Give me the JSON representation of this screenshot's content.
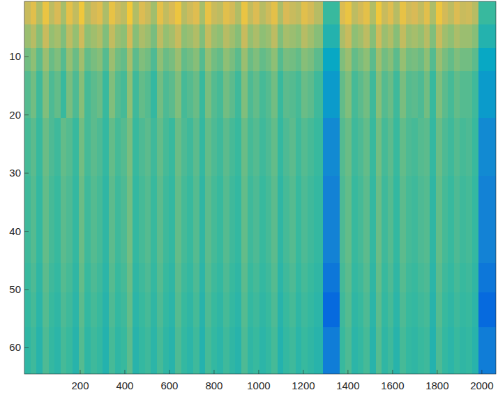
{
  "chart_data": {
    "type": "heatmap",
    "xlim": [
      -50,
      2063
    ],
    "ylim": [
      0.5,
      64.5
    ],
    "xticks": [
      200,
      400,
      600,
      800,
      1000,
      1200,
      1400,
      1600,
      1800,
      2000
    ],
    "yticks": [
      10,
      20,
      30,
      40,
      50,
      60
    ],
    "color_range": [
      0,
      1
    ],
    "x_edges": [
      -50,
      -23,
      4,
      31,
      58,
      85,
      112,
      139,
      166,
      193,
      220,
      247,
      274,
      301,
      328,
      355,
      382,
      409,
      436,
      463,
      490,
      517,
      544,
      571,
      598,
      625,
      652,
      679,
      706,
      733,
      760,
      787,
      814,
      841,
      868,
      895,
      922,
      949,
      976,
      1003,
      1030,
      1057,
      1084,
      1111,
      1138,
      1165,
      1192,
      1219,
      1246,
      1287,
      1362,
      1389,
      1416,
      1443,
      1470,
      1497,
      1524,
      1551,
      1578,
      1605,
      1632,
      1659,
      1686,
      1713,
      1740,
      1767,
      1794,
      1821,
      1848,
      1875,
      1902,
      1929,
      1956,
      1984,
      2063
    ],
    "y_edges": [
      0.5,
      4.5,
      8.5,
      12.5,
      20.5,
      30.5,
      45.5,
      50.5,
      56.5,
      64.5
    ],
    "cells": [
      [
        0.72,
        0.78,
        0.68,
        0.81,
        0.7,
        0.75,
        0.66,
        0.79,
        0.71,
        0.83,
        0.69,
        0.74,
        0.77,
        0.67,
        0.8,
        0.73,
        0.7,
        0.84,
        0.68,
        0.76,
        0.72,
        0.65,
        0.79,
        0.71,
        0.75,
        0.82,
        0.69,
        0.73,
        0.77,
        0.66,
        0.8,
        0.72,
        0.7,
        0.78,
        0.74,
        0.68,
        0.81,
        0.71,
        0.76,
        0.69,
        0.73,
        0.79,
        0.67,
        0.75,
        0.72,
        0.7,
        0.78,
        0.74,
        0.69,
        0.5,
        0.76,
        0.81,
        0.7,
        0.74,
        0.79,
        0.68,
        0.83,
        0.72,
        0.77,
        0.69,
        0.8,
        0.73,
        0.75,
        0.71,
        0.78,
        0.67,
        0.82,
        0.74,
        0.7,
        0.76,
        0.72,
        0.73,
        0.69,
        0.5
      ],
      [
        0.64,
        0.69,
        0.61,
        0.72,
        0.63,
        0.66,
        0.6,
        0.7,
        0.63,
        0.73,
        0.62,
        0.65,
        0.68,
        0.6,
        0.71,
        0.64,
        0.62,
        0.74,
        0.61,
        0.67,
        0.64,
        0.59,
        0.7,
        0.63,
        0.66,
        0.72,
        0.62,
        0.64,
        0.68,
        0.6,
        0.71,
        0.64,
        0.62,
        0.69,
        0.65,
        0.61,
        0.72,
        0.63,
        0.67,
        0.62,
        0.64,
        0.7,
        0.6,
        0.66,
        0.64,
        0.62,
        0.69,
        0.65,
        0.61,
        0.45,
        0.67,
        0.72,
        0.62,
        0.65,
        0.7,
        0.61,
        0.73,
        0.64,
        0.68,
        0.61,
        0.71,
        0.64,
        0.66,
        0.63,
        0.69,
        0.6,
        0.72,
        0.65,
        0.62,
        0.67,
        0.64,
        0.64,
        0.61,
        0.45
      ],
      [
        0.58,
        0.62,
        0.55,
        0.64,
        0.57,
        0.6,
        0.54,
        0.63,
        0.57,
        0.65,
        0.56,
        0.59,
        0.61,
        0.54,
        0.64,
        0.58,
        0.56,
        0.66,
        0.55,
        0.6,
        0.58,
        0.53,
        0.62,
        0.57,
        0.59,
        0.64,
        0.56,
        0.58,
        0.61,
        0.54,
        0.63,
        0.58,
        0.56,
        0.62,
        0.59,
        0.55,
        0.64,
        0.57,
        0.6,
        0.56,
        0.58,
        0.62,
        0.54,
        0.59,
        0.58,
        0.56,
        0.61,
        0.59,
        0.55,
        0.38,
        0.6,
        0.64,
        0.56,
        0.59,
        0.62,
        0.55,
        0.65,
        0.58,
        0.61,
        0.55,
        0.63,
        0.58,
        0.59,
        0.57,
        0.62,
        0.54,
        0.64,
        0.59,
        0.56,
        0.6,
        0.58,
        0.58,
        0.55,
        0.38
      ],
      [
        0.54,
        0.58,
        0.51,
        0.6,
        0.53,
        0.56,
        0.5,
        0.59,
        0.53,
        0.61,
        0.52,
        0.55,
        0.57,
        0.5,
        0.6,
        0.54,
        0.52,
        0.62,
        0.51,
        0.56,
        0.54,
        0.49,
        0.58,
        0.53,
        0.55,
        0.6,
        0.52,
        0.54,
        0.57,
        0.5,
        0.59,
        0.54,
        0.52,
        0.58,
        0.55,
        0.51,
        0.6,
        0.53,
        0.56,
        0.52,
        0.54,
        0.58,
        0.5,
        0.55,
        0.54,
        0.52,
        0.57,
        0.55,
        0.51,
        0.33,
        0.56,
        0.6,
        0.52,
        0.55,
        0.58,
        0.51,
        0.61,
        0.54,
        0.57,
        0.51,
        0.59,
        0.54,
        0.55,
        0.53,
        0.58,
        0.5,
        0.6,
        0.55,
        0.52,
        0.56,
        0.54,
        0.54,
        0.51,
        0.33
      ],
      [
        0.52,
        0.55,
        0.5,
        0.57,
        0.53,
        0.51,
        0.56,
        0.54,
        0.5,
        0.58,
        0.52,
        0.55,
        0.53,
        0.49,
        0.56,
        0.52,
        0.54,
        0.59,
        0.5,
        0.53,
        0.55,
        0.51,
        0.56,
        0.52,
        0.5,
        0.57,
        0.53,
        0.51,
        0.55,
        0.49,
        0.56,
        0.53,
        0.51,
        0.55,
        0.52,
        0.5,
        0.57,
        0.52,
        0.54,
        0.51,
        0.53,
        0.56,
        0.49,
        0.53,
        0.55,
        0.51,
        0.54,
        0.52,
        0.5,
        0.27,
        0.54,
        0.57,
        0.51,
        0.53,
        0.56,
        0.5,
        0.58,
        0.52,
        0.55,
        0.5,
        0.56,
        0.53,
        0.52,
        0.54,
        0.55,
        0.49,
        0.57,
        0.53,
        0.51,
        0.54,
        0.52,
        0.53,
        0.5,
        0.27
      ],
      [
        0.51,
        0.54,
        0.49,
        0.56,
        0.52,
        0.5,
        0.55,
        0.53,
        0.49,
        0.57,
        0.51,
        0.54,
        0.52,
        0.48,
        0.55,
        0.51,
        0.53,
        0.58,
        0.49,
        0.52,
        0.54,
        0.5,
        0.55,
        0.51,
        0.49,
        0.56,
        0.52,
        0.5,
        0.54,
        0.48,
        0.55,
        0.52,
        0.5,
        0.54,
        0.51,
        0.49,
        0.56,
        0.51,
        0.53,
        0.5,
        0.52,
        0.55,
        0.48,
        0.52,
        0.54,
        0.5,
        0.53,
        0.51,
        0.49,
        0.24,
        0.53,
        0.56,
        0.5,
        0.52,
        0.55,
        0.49,
        0.57,
        0.51,
        0.54,
        0.49,
        0.55,
        0.52,
        0.51,
        0.53,
        0.54,
        0.48,
        0.56,
        0.52,
        0.5,
        0.53,
        0.51,
        0.52,
        0.49,
        0.24
      ],
      [
        0.5,
        0.53,
        0.48,
        0.55,
        0.51,
        0.49,
        0.54,
        0.52,
        0.48,
        0.56,
        0.5,
        0.53,
        0.51,
        0.47,
        0.54,
        0.5,
        0.52,
        0.57,
        0.48,
        0.51,
        0.53,
        0.49,
        0.54,
        0.5,
        0.48,
        0.55,
        0.51,
        0.49,
        0.53,
        0.47,
        0.54,
        0.51,
        0.49,
        0.53,
        0.5,
        0.48,
        0.55,
        0.5,
        0.52,
        0.49,
        0.51,
        0.54,
        0.47,
        0.51,
        0.53,
        0.49,
        0.52,
        0.5,
        0.48,
        0.2,
        0.52,
        0.55,
        0.49,
        0.51,
        0.54,
        0.48,
        0.56,
        0.5,
        0.53,
        0.48,
        0.54,
        0.51,
        0.5,
        0.52,
        0.53,
        0.47,
        0.55,
        0.51,
        0.49,
        0.52,
        0.5,
        0.51,
        0.48,
        0.2
      ],
      [
        0.49,
        0.52,
        0.47,
        0.54,
        0.5,
        0.48,
        0.53,
        0.51,
        0.47,
        0.55,
        0.49,
        0.52,
        0.5,
        0.46,
        0.53,
        0.49,
        0.51,
        0.56,
        0.47,
        0.5,
        0.52,
        0.48,
        0.53,
        0.49,
        0.47,
        0.54,
        0.5,
        0.48,
        0.52,
        0.46,
        0.53,
        0.5,
        0.48,
        0.52,
        0.49,
        0.47,
        0.54,
        0.49,
        0.51,
        0.48,
        0.5,
        0.53,
        0.46,
        0.5,
        0.52,
        0.48,
        0.51,
        0.49,
        0.47,
        0.15,
        0.51,
        0.54,
        0.48,
        0.5,
        0.53,
        0.47,
        0.55,
        0.49,
        0.52,
        0.47,
        0.53,
        0.5,
        0.49,
        0.51,
        0.52,
        0.46,
        0.54,
        0.5,
        0.48,
        0.51,
        0.49,
        0.5,
        0.47,
        0.15
      ],
      [
        0.48,
        0.51,
        0.46,
        0.53,
        0.49,
        0.47,
        0.52,
        0.5,
        0.46,
        0.54,
        0.48,
        0.51,
        0.49,
        0.45,
        0.52,
        0.48,
        0.5,
        0.55,
        0.46,
        0.49,
        0.51,
        0.47,
        0.52,
        0.48,
        0.46,
        0.53,
        0.49,
        0.47,
        0.51,
        0.45,
        0.52,
        0.49,
        0.47,
        0.51,
        0.48,
        0.46,
        0.53,
        0.48,
        0.5,
        0.47,
        0.49,
        0.52,
        0.45,
        0.49,
        0.51,
        0.47,
        0.5,
        0.48,
        0.46,
        0.22,
        0.5,
        0.53,
        0.47,
        0.49,
        0.52,
        0.46,
        0.54,
        0.48,
        0.51,
        0.46,
        0.52,
        0.49,
        0.48,
        0.5,
        0.51,
        0.45,
        0.53,
        0.49,
        0.47,
        0.5,
        0.48,
        0.49,
        0.46,
        0.22
      ]
    ]
  }
}
